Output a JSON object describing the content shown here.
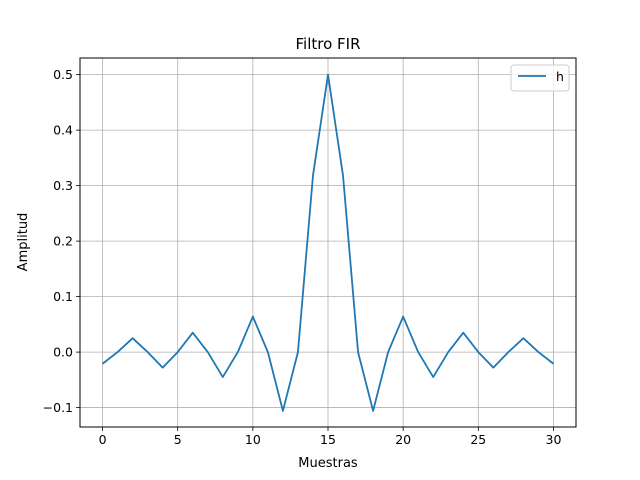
{
  "chart_data": {
    "type": "line",
    "title": "Filtro FIR",
    "xlabel": "Muestras",
    "ylabel": "Amplitud",
    "xlim": [
      -1.5,
      31.5
    ],
    "ylim": [
      -0.135,
      0.53
    ],
    "xticks": [
      0,
      5,
      10,
      15,
      20,
      25,
      30
    ],
    "yticks": [
      -0.1,
      0.0,
      0.1,
      0.2,
      0.3,
      0.4,
      0.5
    ],
    "ytick_labels": [
      "−0.1",
      "0.0",
      "0.1",
      "0.2",
      "0.3",
      "0.4",
      "0.5"
    ],
    "grid": true,
    "legend": {
      "position": "top-right"
    },
    "series": [
      {
        "name": "h",
        "color": "#1f77b4",
        "x": [
          0,
          1,
          2,
          3,
          4,
          5,
          6,
          7,
          8,
          9,
          10,
          11,
          12,
          13,
          14,
          15,
          16,
          17,
          18,
          19,
          20,
          21,
          22,
          23,
          24,
          25,
          26,
          27,
          28,
          29,
          30
        ],
        "y": [
          -0.021,
          0.0,
          0.025,
          0.0,
          -0.028,
          0.0,
          0.035,
          0.0,
          -0.045,
          0.0,
          0.064,
          0.0,
          -0.106,
          0.0,
          0.318,
          0.5,
          0.318,
          0.0,
          -0.106,
          0.0,
          0.064,
          0.0,
          -0.045,
          0.0,
          0.035,
          0.0,
          -0.028,
          0.0,
          0.025,
          0.0,
          -0.021
        ]
      }
    ]
  }
}
